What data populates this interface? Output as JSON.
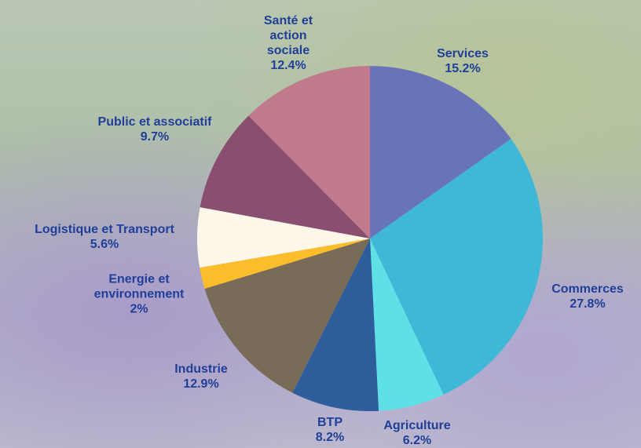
{
  "chart_data": {
    "type": "pie",
    "categories": [
      "Services",
      "Commerces",
      "Agriculture",
      "BTP",
      "Industrie",
      "Energie et environnement",
      "Logistique et Transport",
      "Public et associatif",
      "Santé et action sociale"
    ],
    "values": [
      15.2,
      27.8,
      6.2,
      8.2,
      12.9,
      2,
      5.6,
      9.7,
      12.4
    ],
    "value_labels": [
      "15.2%",
      "27.8%",
      "6.2%",
      "8.2%",
      "12.9%",
      "2%",
      "5.6%",
      "9.7%",
      "12.4%"
    ],
    "colors": [
      "#6874b7",
      "#3fb8d8",
      "#5ee0e6",
      "#2e5d9b",
      "#786b58",
      "#fbbd2a",
      "#fff7ea",
      "#8a4f70",
      "#c07a8c"
    ]
  }
}
